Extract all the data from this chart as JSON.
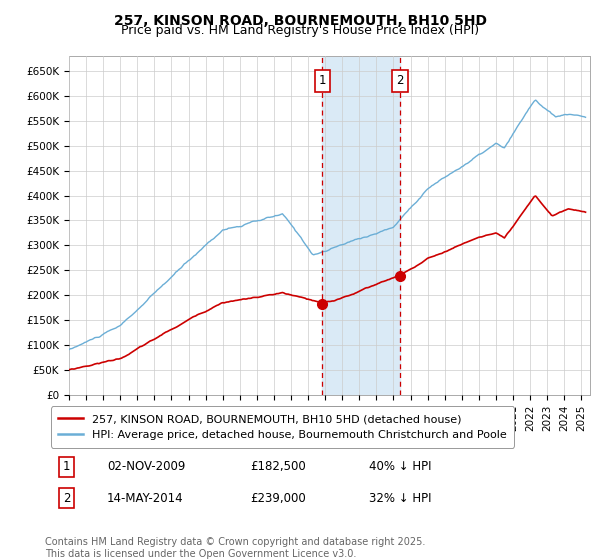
{
  "title": "257, KINSON ROAD, BOURNEMOUTH, BH10 5HD",
  "subtitle": "Price paid vs. HM Land Registry's House Price Index (HPI)",
  "ylabel_ticks": [
    "£0",
    "£50K",
    "£100K",
    "£150K",
    "£200K",
    "£250K",
    "£300K",
    "£350K",
    "£400K",
    "£450K",
    "£500K",
    "£550K",
    "£600K",
    "£650K"
  ],
  "ylim": [
    0,
    680000
  ],
  "xlim_start": 1995.0,
  "xlim_end": 2025.5,
  "sale1_x": 2009.84,
  "sale1_price": 182500,
  "sale1_label": "1",
  "sale2_x": 2014.37,
  "sale2_price": 239000,
  "sale2_label": "2",
  "legend_property": "257, KINSON ROAD, BOURNEMOUTH, BH10 5HD (detached house)",
  "legend_hpi": "HPI: Average price, detached house, Bournemouth Christchurch and Poole",
  "table_row1": [
    "1",
    "02-NOV-2009",
    "£182,500",
    "40% ↓ HPI"
  ],
  "table_row2": [
    "2",
    "14-MAY-2014",
    "£239,000",
    "32% ↓ HPI"
  ],
  "footer": "Contains HM Land Registry data © Crown copyright and database right 2025.\nThis data is licensed under the Open Government Licence v3.0.",
  "hpi_color": "#6baed6",
  "sale_color": "#cc0000",
  "shade_color": "#daeaf6",
  "grid_color": "#cccccc",
  "bg_color": "#ffffff",
  "title_fontsize": 10,
  "subtitle_fontsize": 9,
  "tick_fontsize": 7.5,
  "legend_fontsize": 8,
  "table_fontsize": 8.5,
  "footer_fontsize": 7
}
